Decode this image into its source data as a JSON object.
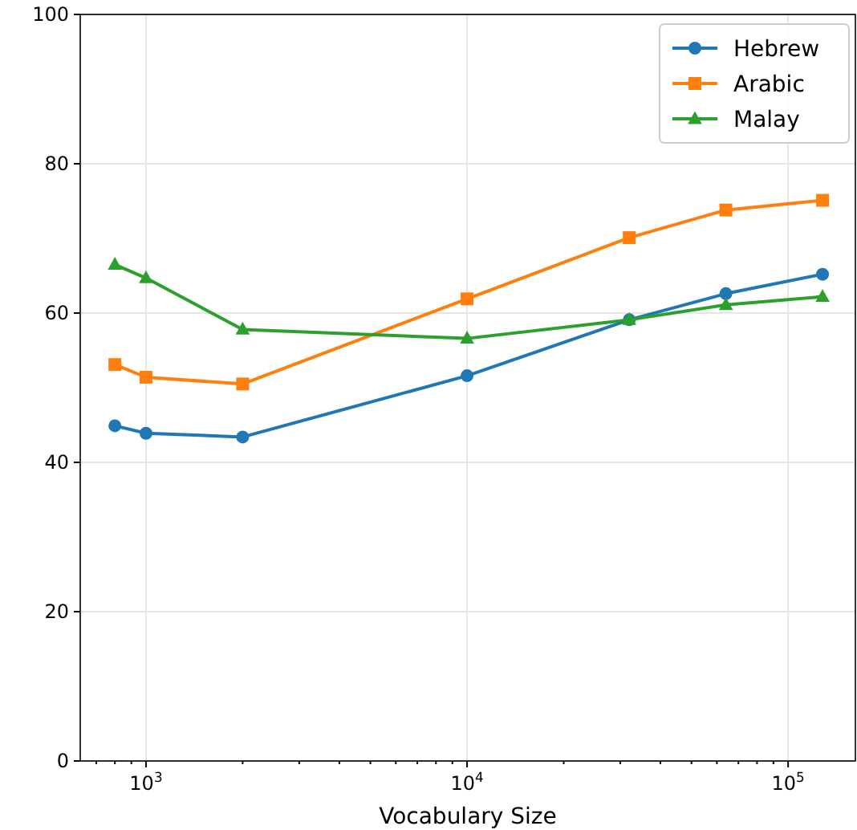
{
  "chart_data": {
    "type": "line",
    "xlabel": "Vocabulary Size",
    "log": "x",
    "grid": true,
    "legend": "top right",
    "xlim": [
      624,
      162000
    ],
    "ylim": [
      0,
      100
    ],
    "yticks": [
      0,
      20,
      40,
      60,
      80,
      100
    ],
    "xticks": [
      {
        "value": 700,
        "label": null
      },
      {
        "value": 800,
        "label": null
      },
      {
        "value": 900,
        "label": null
      },
      {
        "value": 1000,
        "label": "10$^{3}$"
      },
      {
        "value": 2000,
        "label": null
      },
      {
        "value": 3000,
        "label": null
      },
      {
        "value": 4000,
        "label": null
      },
      {
        "value": 5000,
        "label": null
      },
      {
        "value": 6000,
        "label": null
      },
      {
        "value": 7000,
        "label": null
      },
      {
        "value": 8000,
        "label": null
      },
      {
        "value": 9000,
        "label": null
      },
      {
        "value": 10000,
        "label": "10$^{4}$"
      },
      {
        "value": 20000,
        "label": null
      },
      {
        "value": 30000,
        "label": null
      },
      {
        "value": 40000,
        "label": null
      },
      {
        "value": 50000,
        "label": null
      },
      {
        "value": 60000,
        "label": null
      },
      {
        "value": 70000,
        "label": null
      },
      {
        "value": 80000,
        "label": null
      },
      {
        "value": 90000,
        "label": null
      },
      {
        "value": 100000,
        "label": "10$^{5}$"
      }
    ],
    "x": [
      800,
      1000,
      2000,
      10000,
      32000,
      64000,
      128000
    ],
    "series": [
      {
        "name": "Hebrew",
        "color": "#1f77b4",
        "marker": "circle",
        "values": [
          44.9,
          43.9,
          43.4,
          51.6,
          59.1,
          62.6,
          65.2
        ]
      },
      {
        "name": "Arabic",
        "color": "#ff7f0e",
        "marker": "square",
        "values": [
          53.1,
          51.4,
          50.5,
          61.9,
          70.1,
          73.8,
          75.1
        ]
      },
      {
        "name": "Malay",
        "color": "#2ca02c",
        "marker": "triangle",
        "values": [
          66.5,
          64.7,
          57.8,
          56.6,
          59.1,
          61.1,
          62.2
        ]
      }
    ]
  }
}
